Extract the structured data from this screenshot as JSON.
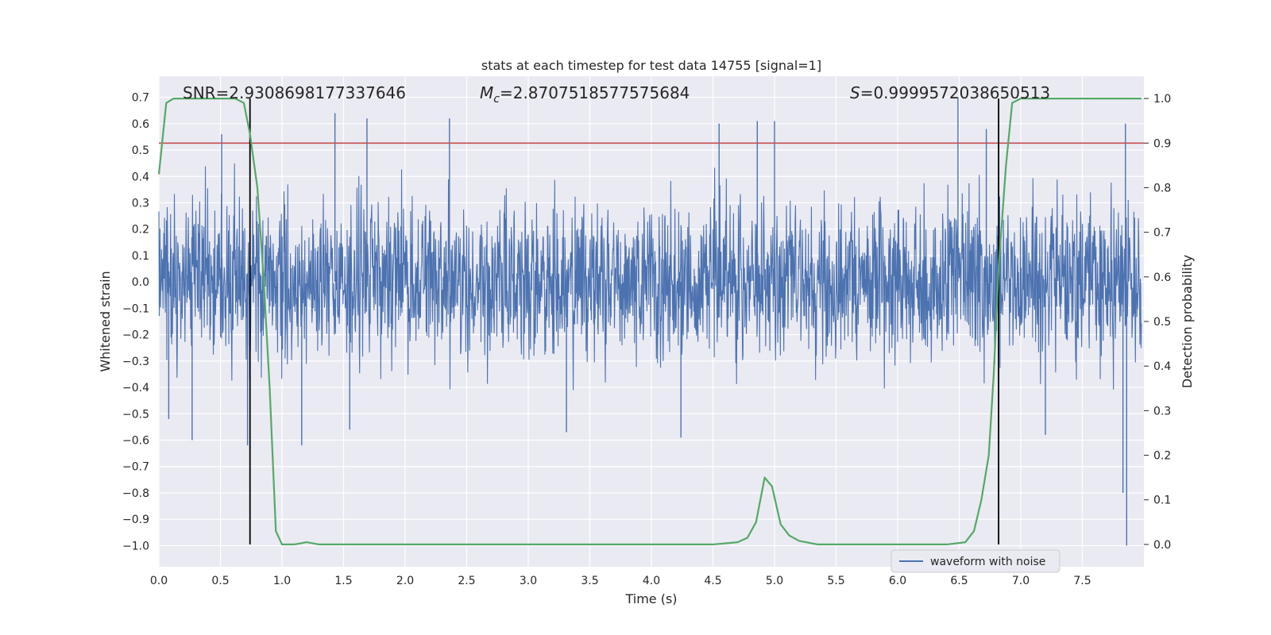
{
  "chart_data": {
    "type": "line",
    "title": "stats at each timestep for test data 14755 [signal=1]",
    "xlabel": "Time (s)",
    "ylabel": "Whitened strain",
    "ylabel_right": "Detection probability",
    "xlim": [
      0.0,
      8.0
    ],
    "ylim": [
      -1.08,
      0.78
    ],
    "ylim_right": [
      -0.05,
      1.05
    ],
    "x_ticks": [
      0.0,
      0.5,
      1.0,
      1.5,
      2.0,
      2.5,
      3.0,
      3.5,
      4.0,
      4.5,
      5.0,
      5.5,
      6.0,
      6.5,
      7.0,
      7.5
    ],
    "x_tick_labels": [
      "0.0",
      "0.5",
      "1.0",
      "1.5",
      "2.0",
      "2.5",
      "3.0",
      "3.5",
      "4.0",
      "4.5",
      "5.0",
      "5.5",
      "6.0",
      "6.5",
      "7.0",
      "7.5"
    ],
    "y_ticks": [
      0.7,
      0.6,
      0.5,
      0.4,
      0.3,
      0.2,
      0.1,
      0.0,
      -0.1,
      -0.2,
      -0.3,
      -0.4,
      -0.5,
      -0.6,
      -0.7,
      -0.8,
      -0.9,
      -1.0
    ],
    "y_tick_labels": [
      "0.7",
      "0.6",
      "0.5",
      "0.4",
      "0.3",
      "0.2",
      "0.1",
      "0.0",
      "−0.1",
      "−0.2",
      "−0.3",
      "−0.4",
      "−0.5",
      "−0.6",
      "−0.7",
      "−0.8",
      "−0.9",
      "−1.0"
    ],
    "y_right_ticks": [
      1.0,
      0.9,
      0.8,
      0.7,
      0.6,
      0.5,
      0.4,
      0.3,
      0.2,
      0.1,
      0.0
    ],
    "y_right_tick_labels": [
      "1.0",
      "0.9",
      "0.8",
      "0.7",
      "0.6",
      "0.5",
      "0.4",
      "0.3",
      "0.2",
      "0.1",
      "0.0"
    ],
    "annotations": {
      "snr": "SNR=2.9308698177337646",
      "mc_prefix": "M",
      "mc_sub": "c",
      "mc_value": "=2.8707518577575684",
      "s_prefix": "S",
      "s_value": "=0.9999572038650513"
    },
    "threshold_right": 0.9,
    "vertical_lines_x": [
      0.74,
      6.82
    ],
    "legend": {
      "label": "waveform with noise",
      "placement": "lower right"
    },
    "series": [
      {
        "name": "waveform with noise",
        "axis": "left",
        "color": "#4c72b0",
        "x_range": [
          0.0,
          7.98
        ],
        "typical_envelope": [
          -0.33,
          0.36
        ],
        "peaks": [
          {
            "x": 0.51,
            "y": 0.56
          },
          {
            "x": 1.43,
            "y": 0.64
          },
          {
            "x": 1.69,
            "y": 0.62
          },
          {
            "x": 2.36,
            "y": 0.62
          },
          {
            "x": 4.55,
            "y": 0.6
          },
          {
            "x": 4.86,
            "y": 0.61
          },
          {
            "x": 5.0,
            "y": 0.61
          },
          {
            "x": 6.49,
            "y": 0.7
          },
          {
            "x": 6.72,
            "y": 0.58
          },
          {
            "x": 7.85,
            "y": 0.6
          }
        ],
        "troughs": [
          {
            "x": 0.08,
            "y": -0.52
          },
          {
            "x": 0.27,
            "y": -0.6
          },
          {
            "x": 0.72,
            "y": -0.62
          },
          {
            "x": 1.16,
            "y": -0.62
          },
          {
            "x": 1.55,
            "y": -0.56
          },
          {
            "x": 3.31,
            "y": -0.57
          },
          {
            "x": 4.24,
            "y": -0.59
          },
          {
            "x": 7.2,
            "y": -0.58
          },
          {
            "x": 7.83,
            "y": -0.8
          },
          {
            "x": 7.86,
            "y": -1.0
          }
        ]
      },
      {
        "name": "detection probability",
        "axis": "right",
        "color": "#55a868",
        "x": [
          0.0,
          0.06,
          0.12,
          0.3,
          0.5,
          0.62,
          0.69,
          0.74,
          0.8,
          0.85,
          0.9,
          0.95,
          1.0,
          1.1,
          1.2,
          1.3,
          1.5,
          2.0,
          2.5,
          3.0,
          3.5,
          4.0,
          4.5,
          4.7,
          4.78,
          4.85,
          4.92,
          4.98,
          5.05,
          5.12,
          5.2,
          5.35,
          5.6,
          6.0,
          6.4,
          6.55,
          6.62,
          6.68,
          6.74,
          6.78,
          6.82,
          6.88,
          6.93,
          7.0,
          7.1,
          7.98
        ],
        "y": [
          0.83,
          0.99,
          1.0,
          1.0,
          1.0,
          1.0,
          0.99,
          0.92,
          0.8,
          0.6,
          0.35,
          0.03,
          0.0,
          0.0,
          0.005,
          0.0,
          0.0,
          0.0,
          0.0,
          0.0,
          0.0,
          0.0,
          0.0,
          0.005,
          0.015,
          0.05,
          0.15,
          0.13,
          0.045,
          0.02,
          0.008,
          0.0,
          0.0,
          0.0,
          0.0,
          0.005,
          0.03,
          0.1,
          0.2,
          0.38,
          0.62,
          0.85,
          0.99,
          1.0,
          1.0,
          1.0
        ]
      }
    ]
  }
}
